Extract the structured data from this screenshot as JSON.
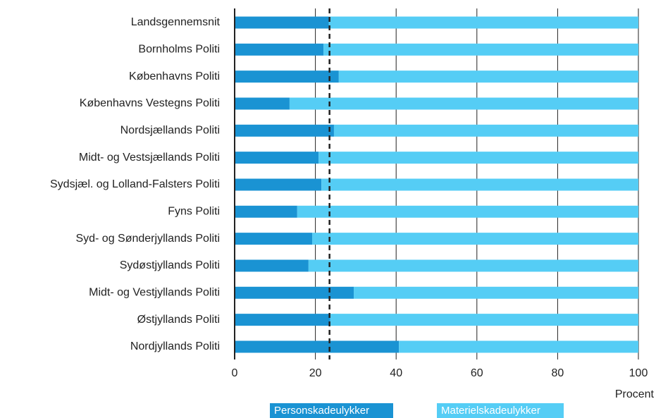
{
  "chart_data": {
    "type": "stacked_bar_horizontal",
    "x_label": "Procent",
    "categories": [
      "Landsgennemsnit",
      "Bornholms Politi",
      "Københavns Politi",
      "Københavns Vestegns Politi",
      "Nordsjællands Politi",
      "Midt- og Vestsjællands Politi",
      "Sydsjæl. og Lolland-Falsters Politi",
      "Fyns Politi",
      "Syd- og Sønderjyllands Politi",
      "Sydøstjyllands Politi",
      "Midt- og Vestjyllands Politi",
      "Østjyllands Politi",
      "Nordjyllands Politi"
    ],
    "series": [
      {
        "name": "Personskadeulykker",
        "color": "#1a93d3",
        "values": [
          23.3,
          22.0,
          25.8,
          13.6,
          24.6,
          20.8,
          21.5,
          15.5,
          19.2,
          18.3,
          29.5,
          23.7,
          40.7
        ]
      },
      {
        "name": "Materielskadeulykker",
        "color": "#55cdf5",
        "values": [
          76.7,
          78.0,
          74.2,
          86.4,
          75.4,
          79.2,
          78.5,
          84.5,
          80.8,
          81.7,
          70.5,
          76.3,
          59.3
        ]
      }
    ],
    "reference_line": 23.5,
    "xlim": [
      0,
      100
    ],
    "xticks": [
      0,
      20,
      40,
      60,
      80,
      100
    ],
    "grid": true
  }
}
